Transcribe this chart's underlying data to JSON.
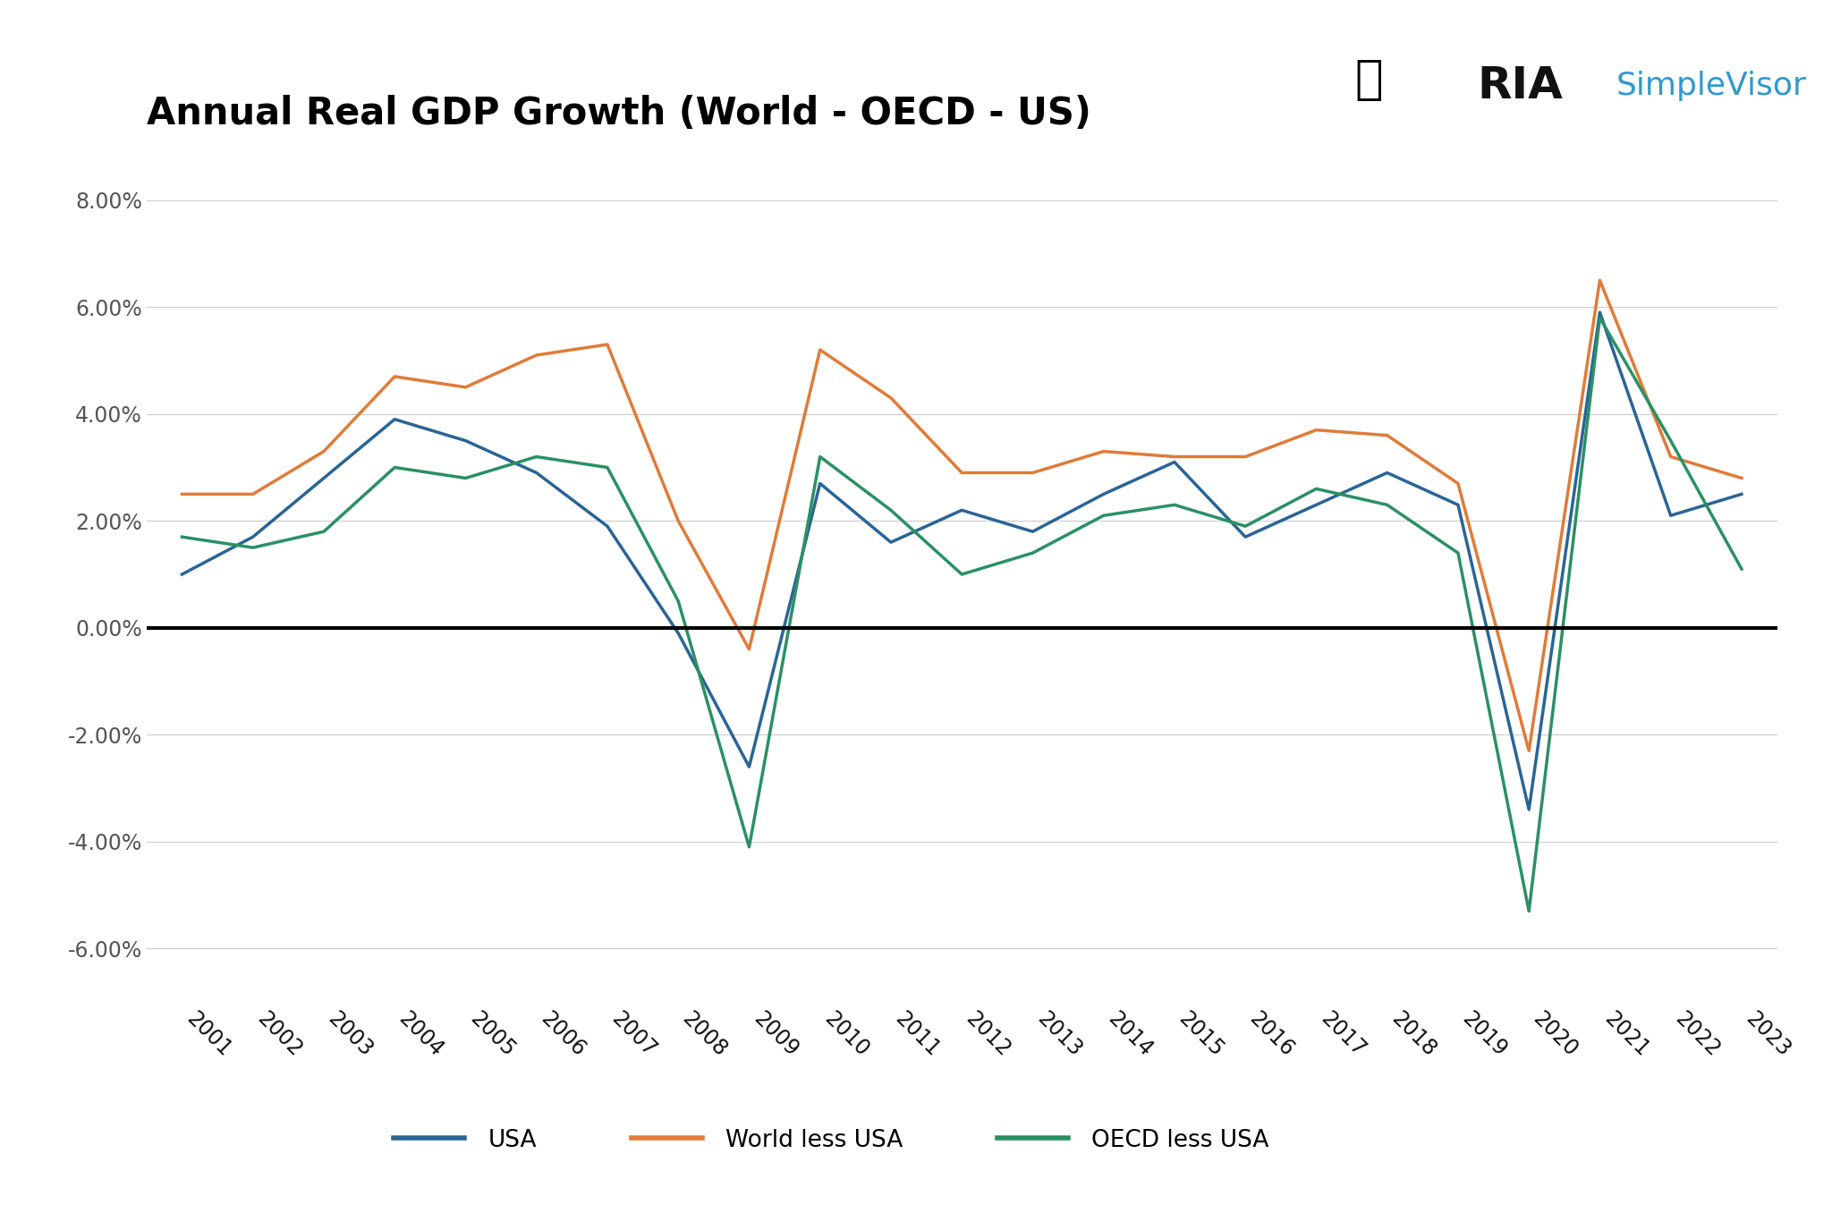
{
  "title": "Annual Real GDP Growth (World - OECD - US)",
  "years": [
    2001,
    2002,
    2003,
    2004,
    2005,
    2006,
    2007,
    2008,
    2009,
    2010,
    2011,
    2012,
    2013,
    2014,
    2015,
    2016,
    2017,
    2018,
    2019,
    2020,
    2021,
    2022,
    2023
  ],
  "usa": [
    1.0,
    1.7,
    2.8,
    3.9,
    3.5,
    2.9,
    1.9,
    -0.1,
    -2.6,
    2.7,
    1.6,
    2.2,
    1.8,
    2.5,
    3.1,
    1.7,
    2.3,
    2.9,
    2.3,
    -3.4,
    5.9,
    2.1,
    2.5
  ],
  "world_less_usa": [
    2.5,
    2.5,
    3.3,
    4.7,
    4.5,
    5.1,
    5.3,
    2.0,
    -0.4,
    5.2,
    4.3,
    2.9,
    2.9,
    3.3,
    3.2,
    3.2,
    3.7,
    3.6,
    2.7,
    -2.3,
    6.5,
    3.2,
    2.8
  ],
  "oecd_less_usa": [
    1.7,
    1.5,
    1.8,
    3.0,
    2.8,
    3.2,
    3.0,
    0.5,
    -4.1,
    3.2,
    2.2,
    1.0,
    1.4,
    2.1,
    2.3,
    1.9,
    2.6,
    2.3,
    1.4,
    -5.3,
    5.8,
    3.5,
    1.1
  ],
  "usa_color": "#2a6496",
  "world_color": "#e07b39",
  "oecd_color": "#2a9063",
  "zero_line_color": "#000000",
  "background_color": "#ffffff",
  "grid_color": "#cccccc",
  "ylim": [
    -7.0,
    9.0
  ],
  "yticks": [
    -6.0,
    -4.0,
    -2.0,
    0.0,
    2.0,
    4.0,
    6.0,
    8.0
  ],
  "line_width": 2.5,
  "tick_label_color": "#555555",
  "title_fontsize": 30,
  "tick_fontsize": 17,
  "legend_fontsize": 19,
  "ria_text_color": "#111111",
  "simplevisor_color": "#3399cc"
}
